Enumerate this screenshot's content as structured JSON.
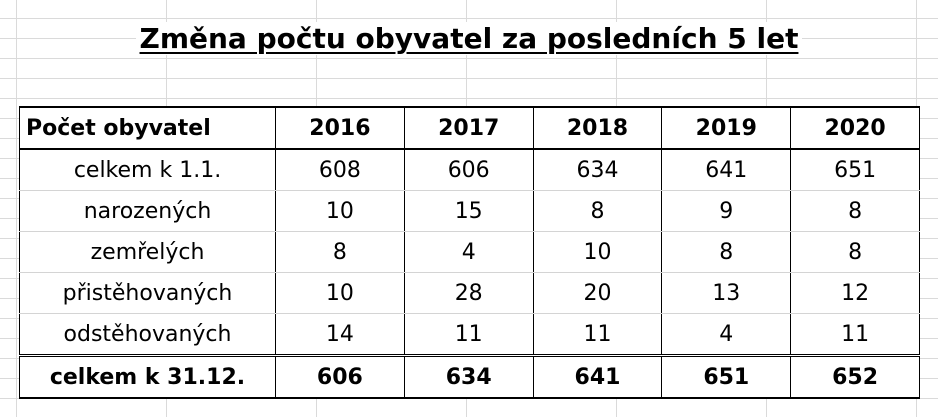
{
  "title": "Změna počtu obyvatel za posledních 5 let",
  "table": {
    "header_label": "Počet obyvatel",
    "years": [
      "2016",
      "2017",
      "2018",
      "2019",
      "2020"
    ],
    "rows": [
      {
        "label": "celkem k 1.1.",
        "values": [
          "608",
          "606",
          "634",
          "641",
          "651"
        ]
      },
      {
        "label": "narozených",
        "values": [
          "10",
          "15",
          "8",
          "9",
          "8"
        ]
      },
      {
        "label": "zemřelých",
        "values": [
          "8",
          "4",
          "10",
          "8",
          "8"
        ]
      },
      {
        "label": "přistěhovaných",
        "values": [
          "10",
          "28",
          "20",
          "13",
          "12"
        ]
      },
      {
        "label": "odstěhovaných",
        "values": [
          "14",
          "11",
          "11",
          "4",
          "11"
        ]
      }
    ],
    "total": {
      "label": "celkem k 31.12.",
      "values": [
        "606",
        "634",
        "641",
        "651",
        "652"
      ]
    }
  }
}
